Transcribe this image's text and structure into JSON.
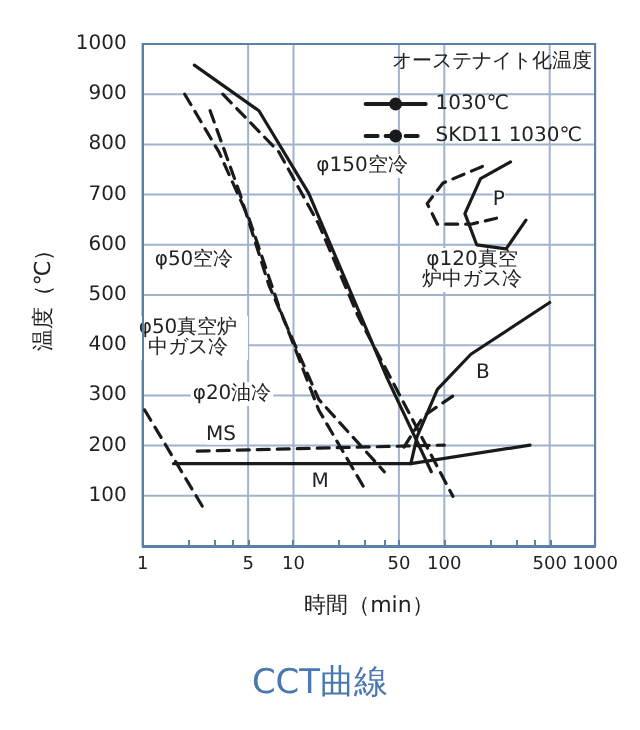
{
  "chart_data": {
    "type": "line",
    "title": "CCT曲線",
    "xlabel": "時間（min）",
    "ylabel": "温度（℃）",
    "legend_title": "オーステナイト化温度",
    "legend": "top right",
    "log": "x",
    "grid": true,
    "marker": "none",
    "xlim": [
      1,
      1000
    ],
    "ylim": [
      0,
      1000
    ],
    "xticks": [
      1,
      {
        "value": 2,
        "label": null
      },
      {
        "value": 3,
        "label": null
      },
      {
        "value": 4,
        "label": null
      },
      5,
      10,
      {
        "value": 20,
        "label": null
      },
      {
        "value": 30,
        "label": null
      },
      {
        "value": 40,
        "label": null
      },
      50,
      100,
      {
        "value": 200,
        "label": null
      },
      {
        "value": 300,
        "label": null
      },
      {
        "value": 400,
        "label": null
      },
      500,
      1000
    ],
    "yticks": [
      100,
      200,
      300,
      400,
      500,
      600,
      700,
      800,
      900,
      1000
    ],
    "series": [
      {
        "name": "1030℃",
        "color": "#1a1a1a",
        "line_style": "solid",
        "x": [
          1.6,
          60,
          370
        ],
        "values": [
          164,
          164,
          201
        ]
      },
      {
        "name": "SKD11 1030℃",
        "color": "#1a1a1a",
        "line_style": "dashed",
        "x": [
          2.3,
          100
        ],
        "values": [
          189,
          201
        ]
      },
      {
        "color": "#1a1a1a",
        "line_style": "solid",
        "x": [
          60,
          66,
          90,
          150,
          500
        ],
        "values": [
          164,
          218,
          312,
          382,
          485
        ]
      },
      {
        "color": "#1a1a1a",
        "line_style": "dashed",
        "x": [
          54,
          73,
          121
        ],
        "values": [
          197,
          259,
          304
        ]
      },
      {
        "color": "#1a1a1a",
        "line_style": "solid",
        "x": [
          275,
          174,
          137,
          164,
          257,
          348
        ],
        "values": [
          765,
          732,
          662,
          600,
          592,
          649
        ]
      },
      {
        "color": "#1a1a1a",
        "line_style": "dashed",
        "x": [
          179,
          98,
          77,
          90,
          150,
          222
        ],
        "values": [
          756,
          723,
          682,
          641,
          641,
          653
        ]
      },
      {
        "color": "#1a1a1a",
        "line_style": "dashed",
        "x": [
          1.03,
          2.5
        ],
        "values": [
          271,
          78
        ]
      },
      {
        "color": "#1a1a1a",
        "line_style": "dashed",
        "x": [
          1.9,
          3.2,
          5.1,
          8.0,
          14.7,
          29
        ],
        "values": [
          900,
          785,
          650,
          477,
          271,
          119
        ]
      },
      {
        "color": "#1a1a1a",
        "line_style": "dashed",
        "x": [
          2.8,
          4.4,
          6.9,
          14.7,
          40
        ],
        "values": [
          867,
          703,
          518,
          292,
          148
        ]
      },
      {
        "color": "#1a1a1a",
        "line_style": "solid",
        "x": [
          2.2,
          5.9,
          12.6,
          23,
          42,
          82
        ],
        "values": [
          958,
          867,
          703,
          518,
          333,
          148
        ]
      },
      {
        "color": "#1a1a1a",
        "line_style": "dashed",
        "x": [
          3.4,
          8.0,
          14.7,
          27,
          57,
          114
        ],
        "values": [
          900,
          785,
          641,
          456,
          271,
          99
        ]
      }
    ],
    "annotations": [
      {
        "text": "P",
        "x": 230,
        "y": 690
      },
      {
        "text": "B",
        "x": 180,
        "y": 345
      },
      {
        "text": "M",
        "x": 15,
        "y": 127
      },
      {
        "text": "MS",
        "x": 3.3,
        "y": 222
      },
      "φ150空冷",
      "φ50空冷",
      "φ120真空炉中ガス冷",
      "φ50真空炉中ガス冷",
      "φ20油冷"
    ]
  }
}
